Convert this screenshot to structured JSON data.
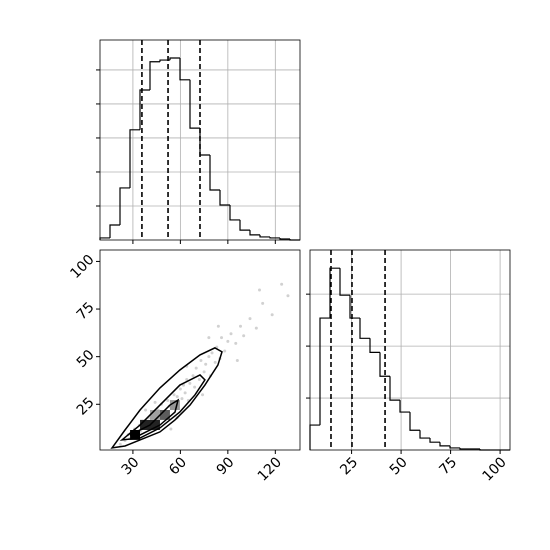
{
  "chart_data": [
    {
      "type": "histogram",
      "bins": [
        9.2,
        15.52,
        21.84,
        28.16,
        34.48,
        40.8,
        47.12,
        53.44,
        59.76,
        66.08,
        72.4,
        78.72,
        85.04,
        91.36,
        97.68,
        104.0,
        110.32,
        116.64,
        122.96,
        129.28,
        135.6
      ],
      "values": [
        0.06,
        0.44,
        1.53,
        3.24,
        4.41,
        5.24,
        5.29,
        5.35,
        4.71,
        3.29,
        2.5,
        1.47,
        1.03,
        0.59,
        0.29,
        0.15,
        0.09,
        0.06,
        0.03,
        0.0
      ],
      "quantiles": [
        35.7,
        52.2,
        72.4
      ],
      "color": "#000000",
      "xlim": [
        9.2,
        135.6
      ],
      "ylim": [
        0,
        5.88
      ],
      "xticks": [
        30,
        60,
        90,
        120
      ],
      "yticks": [
        1,
        2,
        3,
        4,
        5
      ],
      "show_tick_labels": false,
      "grid": true
    },
    {
      "type": "scatter",
      "x": [
        22,
        25,
        27,
        28,
        30,
        31,
        33,
        34,
        35,
        36,
        38,
        40,
        41,
        42,
        43,
        45,
        46,
        47,
        48,
        50,
        51,
        52,
        53,
        55,
        56,
        57,
        58,
        60,
        61,
        62,
        63,
        64,
        65,
        66,
        68,
        69,
        70,
        72,
        73,
        75,
        76,
        78,
        79,
        80,
        82,
        83,
        85,
        86,
        88,
        90,
        92,
        95,
        98,
        100,
        104,
        108,
        112,
        118,
        124,
        128,
        44,
        54,
        64,
        74,
        84,
        38,
        58,
        78,
        96,
        110
      ],
      "y": [
        4,
        6,
        9,
        7,
        10,
        12,
        9,
        14,
        11,
        16,
        13,
        18,
        15,
        12,
        20,
        17,
        22,
        19,
        25,
        21,
        18,
        27,
        24,
        26,
        30,
        23,
        29,
        33,
        28,
        35,
        31,
        38,
        27,
        36,
        40,
        34,
        44,
        38,
        48,
        42,
        46,
        50,
        40,
        52,
        47,
        55,
        49,
        60,
        53,
        58,
        62,
        57,
        66,
        61,
        70,
        65,
        78,
        72,
        88,
        82,
        26,
        12,
        45,
        30,
        66,
        22,
        18,
        60,
        48,
        85
      ],
      "color": "#999999",
      "cells": [
        {
          "x": [
            28.2,
            34.5
          ],
          "y": [
            6.3,
            11.5
          ],
          "density": 1.0
        },
        {
          "x": [
            34.5,
            47.1
          ],
          "y": [
            11.5,
            16.8
          ],
          "density": 0.85
        },
        {
          "x": [
            47.1,
            53.4
          ],
          "y": [
            16.8,
            22.0
          ],
          "density": 0.6
        },
        {
          "x": [
            53.4,
            59.7
          ],
          "y": [
            22.0,
            27.2
          ],
          "density": 0.35
        },
        {
          "x": [
            40.8,
            47.1
          ],
          "y": [
            16.8,
            22.0
          ],
          "density": 0.3
        }
      ],
      "contours": [
        {
          "x": [
            16.8,
            25.0,
            34.5,
            47.1,
            59.7,
            72.4,
            81.8,
            86.3,
            83.7,
            75.5,
            66.1,
            56.6,
            47.1,
            34.5,
            25.0
          ],
          "y": [
            2.1,
            11.5,
            22.0,
            33.6,
            43.0,
            50.9,
            54.6,
            52.5,
            45.6,
            35.1,
            24.6,
            16.8,
            10.5,
            6.3,
            3.1
          ]
        },
        {
          "x": [
            23.1,
            34.5,
            47.1,
            59.7,
            72.4,
            75.5,
            69.2,
            59.7,
            47.1,
            34.5
          ],
          "y": [
            6.3,
            14.1,
            24.6,
            35.1,
            40.4,
            37.8,
            29.9,
            21.0,
            12.6,
            7.3
          ]
        },
        {
          "x": [
            28.2,
            40.8,
            53.4,
            58.5,
            56.6,
            47.1,
            34.5
          ],
          "y": [
            8.9,
            14.1,
            24.6,
            27.2,
            20.9,
            14.1,
            8.9
          ]
        }
      ],
      "xlim": [
        9.2,
        135.6
      ],
      "ylim": [
        1,
        106
      ],
      "xticks": [
        30,
        60,
        90,
        120
      ],
      "yticks": [
        25,
        50,
        75,
        100
      ],
      "show_tick_labels": true,
      "grid": false
    },
    {
      "type": "histogram",
      "bins": [
        4,
        9.05,
        14.1,
        19.15,
        24.2,
        29.25,
        34.3,
        39.35,
        44.4,
        49.45,
        54.5,
        59.55,
        64.6,
        69.65,
        74.7,
        79.75,
        84.8,
        89.85,
        94.9,
        99.95,
        105
      ],
      "values": [
        0.48,
        2.54,
        3.5,
        2.98,
        2.54,
        2.15,
        1.88,
        1.42,
        0.96,
        0.73,
        0.38,
        0.23,
        0.15,
        0.08,
        0.04,
        0.02,
        0.02,
        0,
        0,
        0
      ],
      "quantiles": [
        14.6,
        25.2,
        41.9
      ],
      "color": "#000000",
      "xlim": [
        4,
        105
      ],
      "ylim": [
        0,
        3.85
      ],
      "xticks": [
        25,
        50,
        75,
        100
      ],
      "yticks": [
        1,
        2,
        3
      ],
      "show_tick_labels": "x",
      "grid": true
    }
  ]
}
